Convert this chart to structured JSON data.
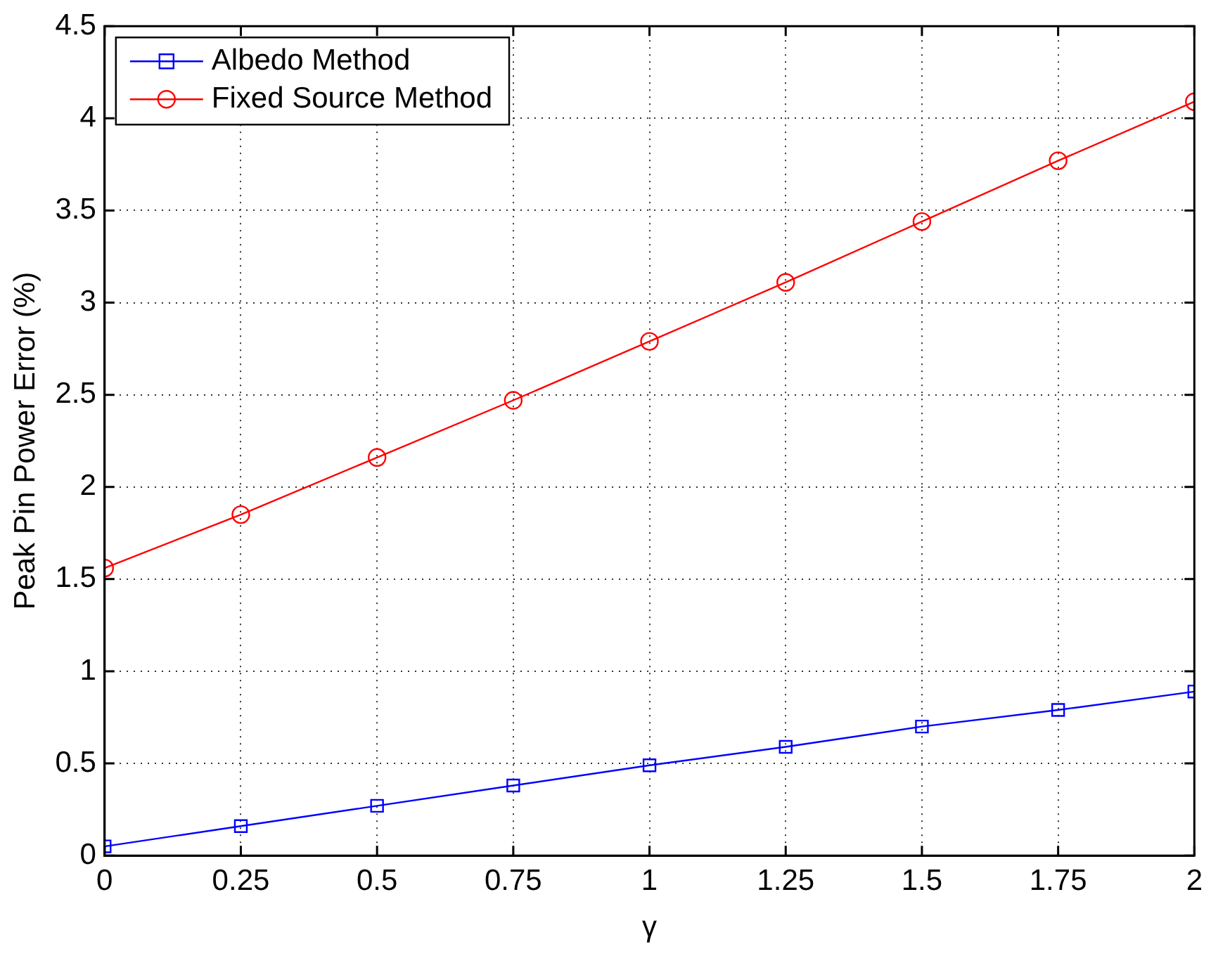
{
  "chart_data": {
    "type": "line",
    "xlabel": "γ",
    "ylabel": "Peak Pin Power Error (%)",
    "x": [
      0,
      0.25,
      0.5,
      0.75,
      1,
      1.25,
      1.5,
      1.75,
      2
    ],
    "series": [
      {
        "name": "Albedo Method",
        "color": "#0000ff",
        "marker": "square",
        "values": [
          0.05,
          0.16,
          0.27,
          0.38,
          0.49,
          0.59,
          0.7,
          0.79,
          0.89
        ]
      },
      {
        "name": "Fixed Source Method",
        "color": "#ff0000",
        "marker": "circle",
        "values": [
          1.56,
          1.85,
          2.16,
          2.47,
          2.79,
          3.11,
          3.44,
          3.77,
          4.09
        ]
      }
    ],
    "xlim": [
      0,
      2
    ],
    "xticks": [
      0,
      0.25,
      0.5,
      0.75,
      1,
      1.25,
      1.5,
      1.75,
      2
    ],
    "ylim": [
      0,
      4.5
    ],
    "yticks": [
      0,
      0.5,
      1,
      1.5,
      2,
      2.5,
      3,
      3.5,
      4,
      4.5
    ],
    "grid": true,
    "legend": "top left",
    "line_style": "solid"
  }
}
